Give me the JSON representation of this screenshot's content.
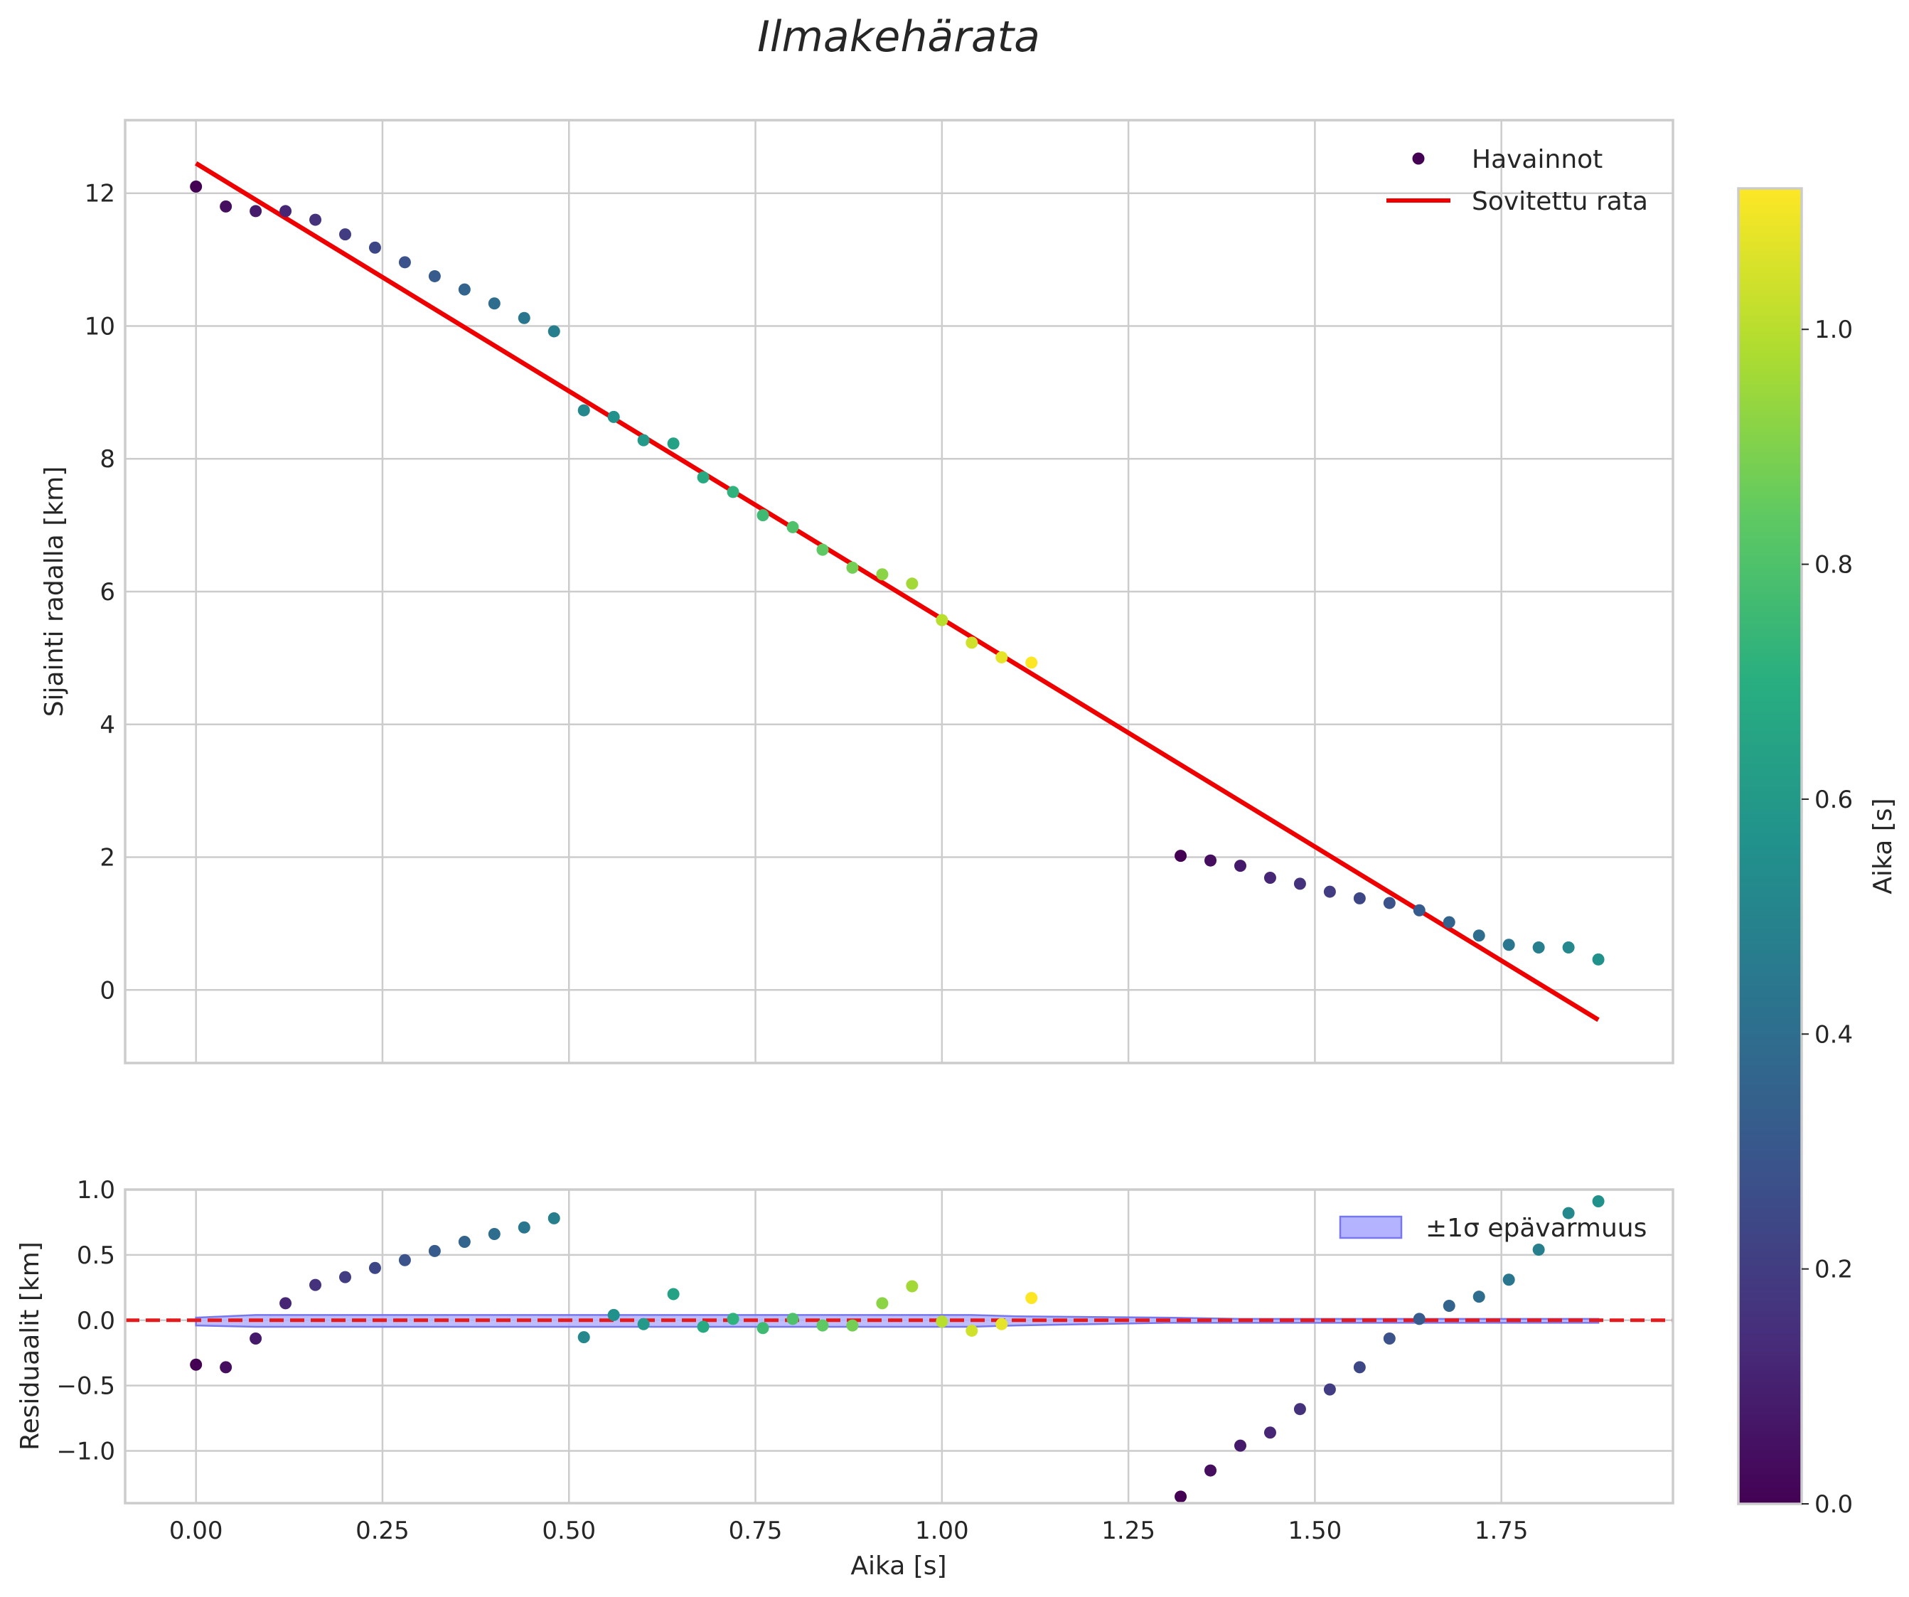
{
  "title": "Ilmakehärata",
  "colors": {
    "fit_line": "#ee0000",
    "band_fill": "#b3b3ff",
    "band_edge": "#7777ee",
    "zero_line": "#e41a1c",
    "grid": "#cccccc",
    "text": "#262626"
  },
  "chart_data": [
    {
      "id": "trajectory",
      "type": "scatter",
      "xlabel": "",
      "ylabel": "Sijainti radalla [km]",
      "xlim": [
        -0.095,
        1.98
      ],
      "ylim": [
        -1.1,
        13.1
      ],
      "xticks": [
        0.0,
        0.25,
        0.5,
        0.75,
        1.0,
        1.25,
        1.5,
        1.75
      ],
      "yticks": [
        0,
        2,
        4,
        6,
        8,
        10,
        12
      ],
      "ytick_labels": [
        "0",
        "2",
        "4",
        "6",
        "8",
        "10",
        "12"
      ],
      "grid": true,
      "legend_position": "top-right",
      "series": [
        {
          "name": "Havainnot",
          "kind": "scatter",
          "x": [
            0.0,
            0.04,
            0.08,
            0.12,
            0.16,
            0.2,
            0.24,
            0.28,
            0.32,
            0.36,
            0.4,
            0.44,
            0.48,
            0.52,
            0.56,
            0.6,
            0.64,
            0.68,
            0.72,
            0.76,
            0.8,
            0.84,
            0.88,
            0.92,
            0.96,
            1.0,
            1.04,
            1.08,
            1.12,
            1.32,
            1.36,
            1.4,
            1.44,
            1.48,
            1.52,
            1.56,
            1.6,
            1.64,
            1.68,
            1.72,
            1.76,
            1.8,
            1.84,
            1.88
          ],
          "y": [
            12.1,
            11.8,
            11.73,
            11.73,
            11.6,
            11.38,
            11.18,
            10.96,
            10.75,
            10.55,
            10.34,
            10.12,
            9.92,
            8.73,
            8.63,
            8.28,
            8.23,
            7.72,
            7.5,
            7.15,
            6.97,
            6.63,
            6.36,
            6.26,
            6.12,
            5.57,
            5.23,
            5.01,
            4.93,
            2.02,
            1.95,
            1.87,
            1.69,
            1.6,
            1.48,
            1.38,
            1.31,
            1.2,
            1.02,
            0.82,
            0.68,
            0.64,
            0.64,
            0.46
          ],
          "color_values": [
            0.0,
            0.04,
            0.08,
            0.12,
            0.16,
            0.2,
            0.24,
            0.28,
            0.32,
            0.36,
            0.4,
            0.44,
            0.48,
            0.52,
            0.56,
            0.6,
            0.64,
            0.68,
            0.72,
            0.76,
            0.8,
            0.84,
            0.88,
            0.92,
            0.96,
            1.0,
            1.04,
            1.08,
            1.12,
            0.0,
            0.04,
            0.08,
            0.12,
            0.16,
            0.2,
            0.24,
            0.28,
            0.32,
            0.36,
            0.4,
            0.44,
            0.48,
            0.52,
            0.56
          ]
        },
        {
          "name": "Sovitettu rata",
          "kind": "line",
          "x": [
            0.0,
            1.88
          ],
          "y": [
            12.45,
            -0.45
          ]
        }
      ]
    },
    {
      "id": "residuals",
      "type": "scatter",
      "xlabel": "Aika [s]",
      "ylabel": "Residuaalit [km]",
      "xlim": [
        -0.095,
        1.98
      ],
      "ylim": [
        -1.4,
        1.0
      ],
      "xticks": [
        0.0,
        0.25,
        0.5,
        0.75,
        1.0,
        1.25,
        1.5,
        1.75
      ],
      "xtick_labels": [
        "0.00",
        "0.25",
        "0.50",
        "0.75",
        "1.00",
        "1.25",
        "1.50",
        "1.75"
      ],
      "yticks": [
        1.0,
        0.5,
        0.0,
        -0.5,
        -1.0
      ],
      "ytick_labels": [
        "1.0",
        "0.5",
        "0.0",
        "−0.5",
        "−1.0"
      ],
      "grid": true,
      "legend_position": "top-right",
      "zero_line": 0.0,
      "series": [
        {
          "name": "Residuaalit",
          "kind": "scatter",
          "x": [
            0.0,
            0.04,
            0.08,
            0.12,
            0.16,
            0.2,
            0.24,
            0.28,
            0.32,
            0.36,
            0.4,
            0.44,
            0.48,
            0.52,
            0.56,
            0.6,
            0.64,
            0.68,
            0.72,
            0.76,
            0.8,
            0.84,
            0.88,
            0.92,
            0.96,
            1.0,
            1.04,
            1.08,
            1.12,
            1.32,
            1.36,
            1.4,
            1.44,
            1.48,
            1.52,
            1.56,
            1.6,
            1.64,
            1.68,
            1.72,
            1.76,
            1.8,
            1.84,
            1.88
          ],
          "y": [
            -0.34,
            -0.36,
            -0.14,
            0.13,
            0.27,
            0.33,
            0.4,
            0.46,
            0.53,
            0.6,
            0.66,
            0.71,
            0.78,
            -0.13,
            0.04,
            -0.03,
            0.2,
            -0.05,
            0.01,
            -0.06,
            0.01,
            -0.04,
            -0.04,
            0.13,
            0.26,
            -0.01,
            -0.08,
            -0.03,
            0.17,
            -1.35,
            -1.15,
            -0.96,
            -0.86,
            -0.68,
            -0.53,
            -0.36,
            -0.14,
            0.01,
            0.11,
            0.18,
            0.31,
            0.54,
            0.82,
            0.91
          ],
          "color_values": [
            0.0,
            0.04,
            0.08,
            0.12,
            0.16,
            0.2,
            0.24,
            0.28,
            0.32,
            0.36,
            0.4,
            0.44,
            0.48,
            0.52,
            0.56,
            0.6,
            0.64,
            0.68,
            0.72,
            0.76,
            0.8,
            0.84,
            0.88,
            0.92,
            0.96,
            1.0,
            1.04,
            1.08,
            1.12,
            0.0,
            0.04,
            0.08,
            0.12,
            0.16,
            0.2,
            0.24,
            0.28,
            0.32,
            0.36,
            0.4,
            0.44,
            0.48,
            0.52,
            0.56
          ]
        },
        {
          "name": "±1σ epävarmuus",
          "kind": "band",
          "x": [
            0.0,
            0.08,
            0.2,
            0.4,
            0.6,
            0.8,
            1.0,
            1.04,
            1.1,
            1.3,
            1.4,
            1.6,
            1.8,
            1.88
          ],
          "upper": [
            0.02,
            0.04,
            0.04,
            0.04,
            0.04,
            0.04,
            0.04,
            0.04,
            0.03,
            0.02,
            0.01,
            0.01,
            0.01,
            0.01
          ],
          "lower": [
            -0.04,
            -0.05,
            -0.05,
            -0.05,
            -0.05,
            -0.05,
            -0.05,
            -0.05,
            -0.04,
            -0.02,
            -0.02,
            -0.02,
            -0.02,
            -0.02
          ]
        }
      ]
    },
    {
      "id": "colorbar",
      "type": "heatmap",
      "label": "Aika [s]",
      "colormap": "viridis",
      "range": [
        0.0,
        1.12
      ],
      "ticks": [
        0.0,
        0.2,
        0.4,
        0.6,
        0.8,
        1.0
      ],
      "tick_labels": [
        "0.0",
        "0.2",
        "0.4",
        "0.6",
        "0.8",
        "1.0"
      ]
    }
  ]
}
